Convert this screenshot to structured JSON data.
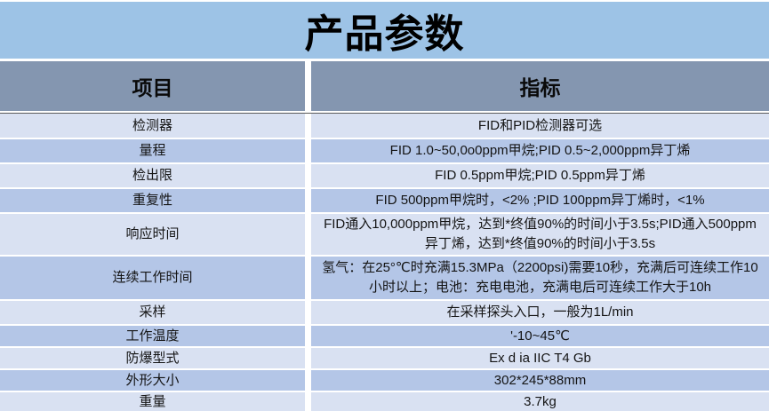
{
  "title": "产品参数",
  "colors": {
    "title_bg": "#9DC3E6",
    "header_bg": "#8496B0",
    "row_light": "#D9E1F2",
    "row_medium": "#B4C6E7",
    "gap": "#FFFFFF",
    "text": "#141414"
  },
  "table": {
    "headers": [
      "项目",
      "指标"
    ],
    "rows": [
      {
        "item": "检测器",
        "value": "FID和PID检测器可选"
      },
      {
        "item": "量程",
        "value": "FID 1.0~50,0o0ppm甲烷;PID 0.5~2,000ppm异丁烯"
      },
      {
        "item": "检出限",
        "value": "FID 0.5ppm甲烷;PID 0.5ppm异丁烯"
      },
      {
        "item": "重复性",
        "value": "FID 500ppm甲烷时，<2% ;PID 100ppm异丁烯时，<1%"
      },
      {
        "item": "响应时间",
        "value": "FID通入10,000ppm甲烷，达到*终值90%的时间小于3.5s;PID通入500ppm异丁烯，达到*终值90%的时间小于3.5s"
      },
      {
        "item": "连续工作时间",
        "value": "氢气：在25°℃时充满15.3MPa（2200psi)需要10秒，充满后可连续工作10小时以上；电池：充电电池，充满电后可连续工作大于10h"
      },
      {
        "item": "采样",
        "value": "在采样探头入口，一般为1L/min"
      },
      {
        "item": "工作温度",
        "value": "'-10~45℃"
      },
      {
        "item": "防爆型式",
        "value": "Ex d ia IIC T4 Gb"
      },
      {
        "item": "外形大小",
        "value": "302*245*88mm"
      },
      {
        "item": "重量",
        "value": "3.7kg"
      }
    ]
  }
}
